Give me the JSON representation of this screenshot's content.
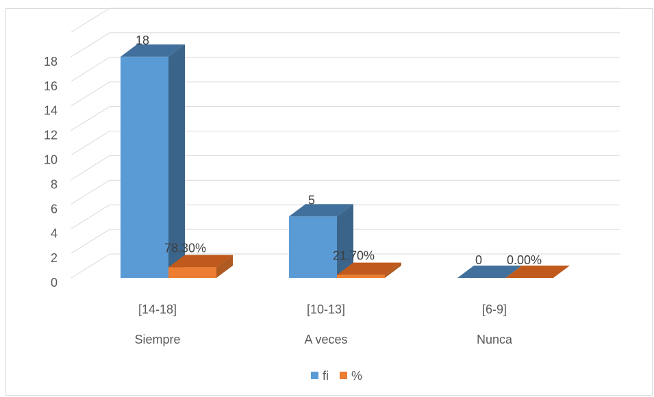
{
  "chart_data": {
    "type": "bar",
    "categories": [
      {
        "range": "[14-18]",
        "label": "Siempre"
      },
      {
        "range": "[10-13]",
        "label": "A veces"
      },
      {
        "range": "[6-9]",
        "label": "Nunca"
      }
    ],
    "series": [
      {
        "name": "fi",
        "values": [
          18,
          5,
          0
        ],
        "labels": [
          "18",
          "5",
          "0"
        ],
        "color": "#5b9bd5",
        "side_color": "#3a6489",
        "top_color": "#41709c"
      },
      {
        "name": "%",
        "values": [
          0.783,
          0.217,
          0.0
        ],
        "labels": [
          "78.30%",
          "21.70%",
          "0.00%"
        ],
        "color": "#ed7d31",
        "side_color": "#ae5a21",
        "top_color": "#c05a1c"
      }
    ],
    "ylim": [
      0,
      20
    ],
    "yticks": [
      0,
      2,
      4,
      6,
      8,
      10,
      12,
      14,
      16,
      18
    ],
    "grid": true,
    "legend_position": "bottom",
    "perspective": "3d"
  }
}
